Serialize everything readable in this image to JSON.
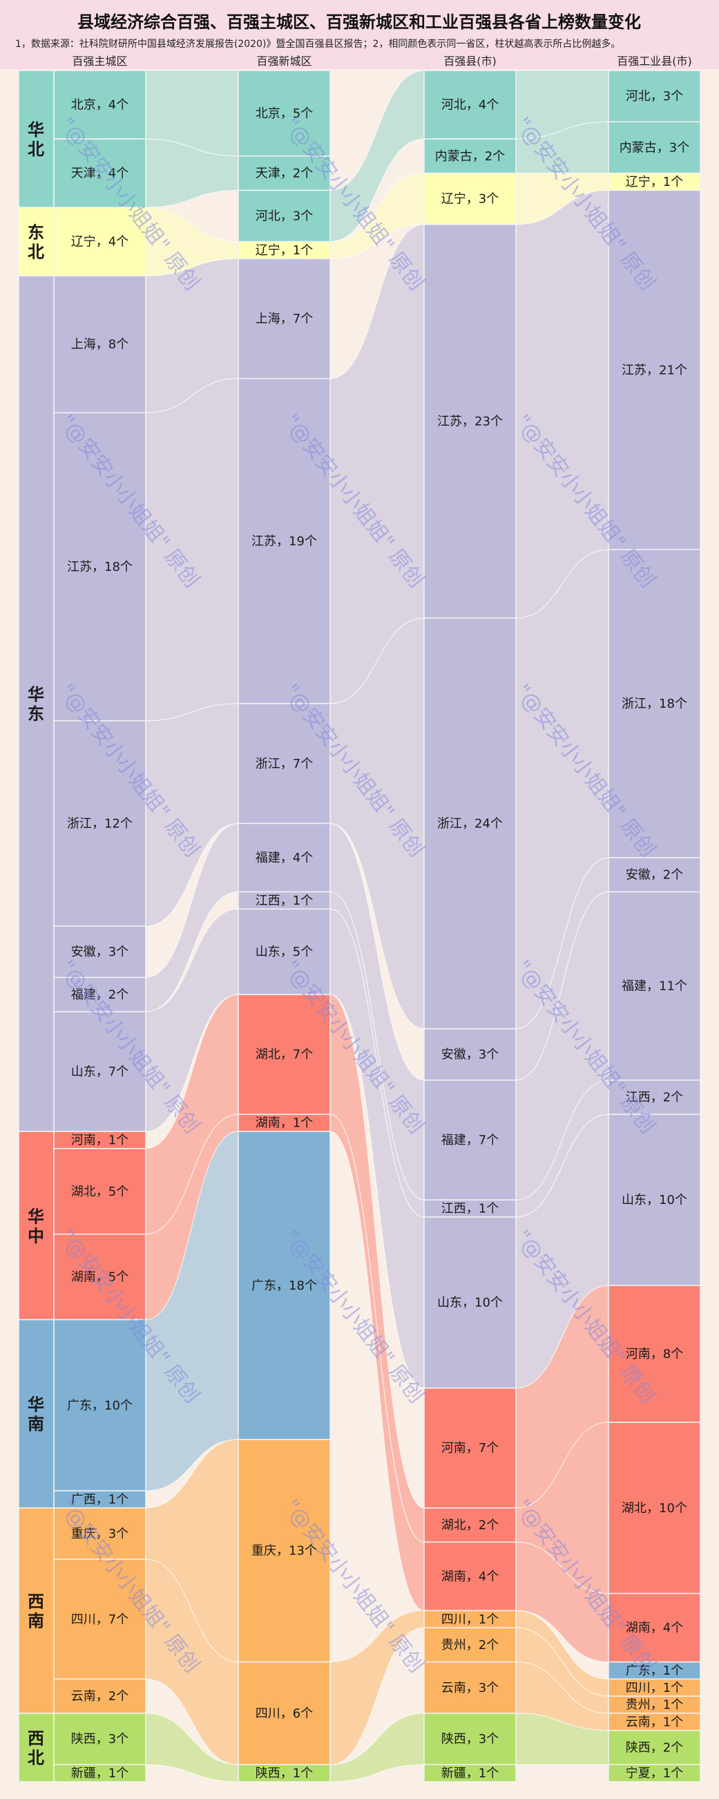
{
  "title": "县域经济综合百强、百强主城区、百强新城区和工业百强县各省上榜数量变化",
  "subtitle": "1，数据来源：社科院财研所中国县域经济发展报告(2020)》暨全国百强县区报告；2，相同颜色表示同一省区，柱状越高表示所占比例越多。",
  "watermark": "\"@安安小小姐姐\" 原创",
  "colors": {
    "华北": "#8dd3c7",
    "东北": "#ffffb3",
    "华东": "#bebada",
    "华中": "#fb8072",
    "华南": "#80b1d3",
    "西南": "#fdb462",
    "西北": "#b3de69",
    "background": "#f9efe6",
    "title_band": "#f7dce6"
  },
  "chart_data": {
    "type": "sankey",
    "title": "县域经济综合百强、百强主城区、百强新城区和工业百强县各省上榜数量变化",
    "unit": "个",
    "regions": [
      {
        "name": "华北",
        "provinces": [
          "北京",
          "天津",
          "河北",
          "内蒙古"
        ]
      },
      {
        "name": "东北",
        "provinces": [
          "辽宁"
        ]
      },
      {
        "name": "华东",
        "provinces": [
          "上海",
          "江苏",
          "浙江",
          "安徽",
          "福建",
          "江西",
          "山东"
        ]
      },
      {
        "name": "华中",
        "provinces": [
          "河南",
          "湖北",
          "湖南"
        ]
      },
      {
        "name": "华南",
        "provinces": [
          "广东",
          "广西"
        ]
      },
      {
        "name": "西南",
        "provinces": [
          "重庆",
          "四川",
          "贵州",
          "云南"
        ]
      },
      {
        "name": "西北",
        "provinces": [
          "陕西",
          "新疆",
          "宁夏"
        ]
      }
    ],
    "columns": [
      {
        "name": "百强主城区",
        "nodes": [
          {
            "province": "北京",
            "value": 4
          },
          {
            "province": "天津",
            "value": 4
          },
          {
            "province": "辽宁",
            "value": 4
          },
          {
            "province": "上海",
            "value": 8
          },
          {
            "province": "江苏",
            "value": 18
          },
          {
            "province": "浙江",
            "value": 12
          },
          {
            "province": "安徽",
            "value": 3
          },
          {
            "province": "福建",
            "value": 2
          },
          {
            "province": "山东",
            "value": 7
          },
          {
            "province": "河南",
            "value": 1
          },
          {
            "province": "湖北",
            "value": 5
          },
          {
            "province": "湖南",
            "value": 5
          },
          {
            "province": "广东",
            "value": 10
          },
          {
            "province": "广西",
            "value": 1
          },
          {
            "province": "重庆",
            "value": 3
          },
          {
            "province": "四川",
            "value": 7
          },
          {
            "province": "云南",
            "value": 2
          },
          {
            "province": "陕西",
            "value": 3
          },
          {
            "province": "新疆",
            "value": 1
          }
        ]
      },
      {
        "name": "百强新城区",
        "nodes": [
          {
            "province": "北京",
            "value": 5
          },
          {
            "province": "天津",
            "value": 2
          },
          {
            "province": "河北",
            "value": 3
          },
          {
            "province": "辽宁",
            "value": 1
          },
          {
            "province": "上海",
            "value": 7
          },
          {
            "province": "江苏",
            "value": 19
          },
          {
            "province": "浙江",
            "value": 7
          },
          {
            "province": "福建",
            "value": 4
          },
          {
            "province": "江西",
            "value": 1
          },
          {
            "province": "山东",
            "value": 5
          },
          {
            "province": "湖北",
            "value": 7
          },
          {
            "province": "湖南",
            "value": 1
          },
          {
            "province": "广东",
            "value": 18
          },
          {
            "province": "重庆",
            "value": 13
          },
          {
            "province": "四川",
            "value": 6
          },
          {
            "province": "陕西",
            "value": 1
          }
        ]
      },
      {
        "name": "百强县(市)",
        "nodes": [
          {
            "province": "河北",
            "value": 4
          },
          {
            "province": "内蒙古",
            "value": 2
          },
          {
            "province": "辽宁",
            "value": 3
          },
          {
            "province": "江苏",
            "value": 23
          },
          {
            "province": "浙江",
            "value": 24
          },
          {
            "province": "安徽",
            "value": 3
          },
          {
            "province": "福建",
            "value": 7
          },
          {
            "province": "江西",
            "value": 1
          },
          {
            "province": "山东",
            "value": 10
          },
          {
            "province": "河南",
            "value": 7
          },
          {
            "province": "湖北",
            "value": 2
          },
          {
            "province": "湖南",
            "value": 4
          },
          {
            "province": "四川",
            "value": 1
          },
          {
            "province": "贵州",
            "value": 2
          },
          {
            "province": "云南",
            "value": 3
          },
          {
            "province": "陕西",
            "value": 3
          },
          {
            "province": "新疆",
            "value": 1
          }
        ]
      },
      {
        "name": "百强工业县(市)",
        "nodes": [
          {
            "province": "河北",
            "value": 3
          },
          {
            "province": "内蒙古",
            "value": 3
          },
          {
            "province": "辽宁",
            "value": 1
          },
          {
            "province": "江苏",
            "value": 21
          },
          {
            "province": "浙江",
            "value": 18
          },
          {
            "province": "安徽",
            "value": 2
          },
          {
            "province": "福建",
            "value": 11
          },
          {
            "province": "江西",
            "value": 2
          },
          {
            "province": "山东",
            "value": 10
          },
          {
            "province": "河南",
            "value": 8
          },
          {
            "province": "湖北",
            "value": 10
          },
          {
            "province": "湖南",
            "value": 4
          },
          {
            "province": "广东",
            "value": 1
          },
          {
            "province": "四川",
            "value": 1
          },
          {
            "province": "贵州",
            "value": 1
          },
          {
            "province": "云南",
            "value": 1
          },
          {
            "province": "陕西",
            "value": 2
          },
          {
            "province": "宁夏",
            "value": 1
          }
        ]
      }
    ]
  }
}
